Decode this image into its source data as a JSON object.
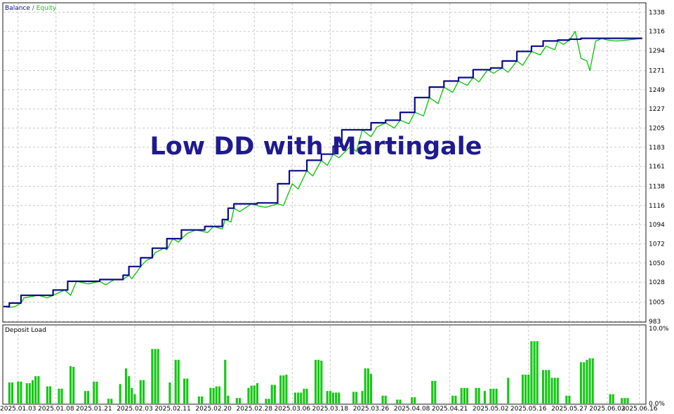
{
  "chart_data": [
    {
      "type": "line",
      "title": "Low DD with Martingale",
      "legend": {
        "items": [
          "Balance",
          "Equity"
        ],
        "separator": " / ",
        "placement": "top-left"
      },
      "colors": {
        "balance": "#0a0a8c",
        "equity": "#17c417",
        "grid": "#c8c8c8"
      },
      "grid": true,
      "ylim": [
        983,
        1348
      ],
      "y_ticks": [
        983,
        1005,
        1028,
        1050,
        1072,
        1094,
        1116,
        1138,
        1161,
        1183,
        1205,
        1227,
        1249,
        1271,
        1294,
        1316,
        1338
      ],
      "xlim": [
        0,
        220
      ],
      "x_ticks": [
        {
          "label": "2025.01.03",
          "x": 5
        },
        {
          "label": "2025.01.08",
          "x": 18
        },
        {
          "label": "2025.01.21",
          "x": 31
        },
        {
          "label": "2025.02.03",
          "x": 45
        },
        {
          "label": "2025.02.11",
          "x": 58
        },
        {
          "label": "2025.02.20",
          "x": 72
        },
        {
          "label": "2025.02.28",
          "x": 86
        },
        {
          "label": "2025.03.06",
          "x": 99
        },
        {
          "label": "2025.03.18",
          "x": 112
        },
        {
          "label": "2025.03.26",
          "x": 126
        },
        {
          "label": "2025.04.08",
          "x": 140
        },
        {
          "label": "2025.04.21",
          "x": 153
        },
        {
          "label": "2025.05.02",
          "x": 167
        },
        {
          "label": "2025.05.16",
          "x": 180
        },
        {
          "label": "2025.05.27",
          "x": 194
        },
        {
          "label": "2025.06.03",
          "x": 207
        },
        {
          "label": "2025.06.16",
          "x": 218
        }
      ],
      "series": [
        {
          "name": "Balance",
          "x": [
            0,
            2,
            2,
            6,
            6,
            17,
            17,
            22,
            22,
            33,
            33,
            41,
            41,
            43,
            43,
            47,
            47,
            51,
            51,
            56,
            56,
            61,
            61,
            69,
            69,
            75,
            75,
            77,
            77,
            79,
            79,
            87,
            87,
            94,
            94,
            98,
            98,
            104,
            104,
            109,
            109,
            113,
            113,
            116,
            116,
            126,
            126,
            131,
            131,
            136,
            136,
            141,
            141,
            146,
            146,
            151,
            151,
            156,
            156,
            161,
            161,
            167,
            167,
            171,
            171,
            176,
            176,
            181,
            181,
            185,
            185,
            190,
            190,
            194,
            194,
            198,
            198,
            219
          ],
          "y": [
            1000,
            1000,
            1004,
            1004,
            1013,
            1013,
            1019,
            1019,
            1029,
            1029,
            1031,
            1031,
            1036,
            1036,
            1046,
            1046,
            1056,
            1056,
            1067,
            1067,
            1078,
            1078,
            1088,
            1088,
            1092,
            1092,
            1100,
            1100,
            1113,
            1113,
            1118,
            1118,
            1119,
            1119,
            1141,
            1141,
            1156,
            1156,
            1168,
            1168,
            1175,
            1175,
            1184,
            1184,
            1203,
            1203,
            1211,
            1211,
            1214,
            1214,
            1223,
            1223,
            1240,
            1240,
            1252,
            1252,
            1259,
            1259,
            1263,
            1263,
            1272,
            1272,
            1274,
            1274,
            1282,
            1282,
            1293,
            1293,
            1299,
            1299,
            1305,
            1305,
            1306,
            1306,
            1307,
            1307,
            1308,
            1308
          ]
        },
        {
          "name": "Equity",
          "x": [
            0,
            2,
            4,
            6,
            7,
            12,
            15,
            17,
            19,
            21,
            23,
            25,
            29,
            33,
            35,
            38,
            41,
            43,
            44,
            46,
            47,
            49,
            51,
            52,
            55,
            56,
            58,
            60,
            61,
            63,
            66,
            70,
            72,
            75,
            76,
            78,
            79,
            81,
            85,
            88,
            90,
            94,
            96,
            99,
            101,
            104,
            106,
            109,
            111,
            113,
            115,
            119,
            121,
            123,
            126,
            128,
            131,
            134,
            136,
            139,
            141,
            144,
            146,
            149,
            151,
            154,
            156,
            159,
            161,
            163,
            166,
            168,
            171,
            173,
            176,
            178,
            181,
            184,
            186,
            189,
            190,
            192,
            194,
            196,
            198,
            200,
            201,
            203,
            204,
            205,
            207,
            210,
            214,
            219
          ],
          "y": [
            1000,
            999,
            1000,
            1004,
            1010,
            1013,
            1010,
            1013,
            1016,
            1019,
            1013,
            1029,
            1026,
            1029,
            1025,
            1031,
            1031,
            1036,
            1032,
            1041,
            1046,
            1053,
            1056,
            1062,
            1067,
            1065,
            1078,
            1074,
            1078,
            1084,
            1088,
            1085,
            1092,
            1089,
            1100,
            1097,
            1113,
            1109,
            1118,
            1115,
            1114,
            1118,
            1116,
            1141,
            1135,
            1156,
            1150,
            1168,
            1162,
            1175,
            1171,
            1184,
            1178,
            1203,
            1195,
            1206,
            1211,
            1205,
            1214,
            1210,
            1223,
            1219,
            1240,
            1233,
            1252,
            1246,
            1259,
            1254,
            1263,
            1258,
            1272,
            1268,
            1274,
            1269,
            1282,
            1277,
            1293,
            1289,
            1299,
            1295,
            1305,
            1301,
            1306,
            1316,
            1285,
            1282,
            1271,
            1305,
            1306,
            1308,
            1306,
            1305,
            1306,
            1308
          ]
        }
      ]
    },
    {
      "type": "bar",
      "title": "Deposit Load",
      "color": "#14c814",
      "ylim": [
        0,
        10
      ],
      "y_tick_labels": [
        "10.0%",
        "0.0%"
      ],
      "bars": [
        {
          "x": 2,
          "v": 2.7
        },
        {
          "x": 3,
          "v": 2.7
        },
        {
          "x": 5,
          "v": 2.8
        },
        {
          "x": 6,
          "v": 2.8
        },
        {
          "x": 8,
          "v": 2.6
        },
        {
          "x": 9,
          "v": 2.6
        },
        {
          "x": 10,
          "v": 3.0
        },
        {
          "x": 11,
          "v": 3.5
        },
        {
          "x": 12,
          "v": 3.5
        },
        {
          "x": 15,
          "v": 2.2
        },
        {
          "x": 16,
          "v": 2.2
        },
        {
          "x": 19,
          "v": 1.9
        },
        {
          "x": 20,
          "v": 1.9
        },
        {
          "x": 23,
          "v": 4.8
        },
        {
          "x": 24,
          "v": 4.7
        },
        {
          "x": 28,
          "v": 1.6
        },
        {
          "x": 29,
          "v": 1.6
        },
        {
          "x": 31,
          "v": 2.8
        },
        {
          "x": 32,
          "v": 2.8
        },
        {
          "x": 36,
          "v": 0.6
        },
        {
          "x": 37,
          "v": 0.6
        },
        {
          "x": 40,
          "v": 2.5
        },
        {
          "x": 42,
          "v": 4.5
        },
        {
          "x": 43,
          "v": 3.5
        },
        {
          "x": 44,
          "v": 2.0
        },
        {
          "x": 45,
          "v": 1.2
        },
        {
          "x": 47,
          "v": 3.0
        },
        {
          "x": 48,
          "v": 3.0
        },
        {
          "x": 51,
          "v": 7.0
        },
        {
          "x": 52,
          "v": 7.0
        },
        {
          "x": 53,
          "v": 7.0
        },
        {
          "x": 57,
          "v": 2.7
        },
        {
          "x": 59,
          "v": 5.6
        },
        {
          "x": 60,
          "v": 5.6
        },
        {
          "x": 62,
          "v": 3.2
        },
        {
          "x": 63,
          "v": 3.2
        },
        {
          "x": 67,
          "v": 0.9
        },
        {
          "x": 68,
          "v": 0.9
        },
        {
          "x": 71,
          "v": 2.0
        },
        {
          "x": 72,
          "v": 2.0
        },
        {
          "x": 73,
          "v": 2.2
        },
        {
          "x": 74,
          "v": 2.2
        },
        {
          "x": 76,
          "v": 5.6
        },
        {
          "x": 77,
          "v": 1.0
        },
        {
          "x": 80,
          "v": 0.7
        },
        {
          "x": 81,
          "v": 0.7
        },
        {
          "x": 84,
          "v": 2.0
        },
        {
          "x": 85,
          "v": 2.3
        },
        {
          "x": 86,
          "v": 2.3
        },
        {
          "x": 87,
          "v": 2.6
        },
        {
          "x": 90,
          "v": 0.6
        },
        {
          "x": 91,
          "v": 0.6
        },
        {
          "x": 92,
          "v": 2.4
        },
        {
          "x": 93,
          "v": 2.4
        },
        {
          "x": 95,
          "v": 3.6
        },
        {
          "x": 96,
          "v": 3.6
        },
        {
          "x": 97,
          "v": 3.7
        },
        {
          "x": 100,
          "v": 1.4
        },
        {
          "x": 101,
          "v": 1.4
        },
        {
          "x": 102,
          "v": 1.4
        },
        {
          "x": 103,
          "v": 1.9
        },
        {
          "x": 104,
          "v": 1.9
        },
        {
          "x": 107,
          "v": 5.6
        },
        {
          "x": 108,
          "v": 5.6
        },
        {
          "x": 109,
          "v": 5.5
        },
        {
          "x": 111,
          "v": 1.6
        },
        {
          "x": 112,
          "v": 1.6
        },
        {
          "x": 113,
          "v": 1.4
        },
        {
          "x": 114,
          "v": 1.4
        },
        {
          "x": 115,
          "v": 1.4
        },
        {
          "x": 120,
          "v": 1.5
        },
        {
          "x": 121,
          "v": 1.5
        },
        {
          "x": 123,
          "v": 1.6
        },
        {
          "x": 124,
          "v": 4.5
        },
        {
          "x": 125,
          "v": 4.5
        },
        {
          "x": 126,
          "v": 3.8
        },
        {
          "x": 130,
          "v": 1.0
        },
        {
          "x": 131,
          "v": 1.0
        },
        {
          "x": 135,
          "v": 0.5
        },
        {
          "x": 136,
          "v": 0.5
        },
        {
          "x": 140,
          "v": 0.8
        },
        {
          "x": 141,
          "v": 0.8
        },
        {
          "x": 147,
          "v": 2.9
        },
        {
          "x": 148,
          "v": 2.9
        },
        {
          "x": 154,
          "v": 1.0
        },
        {
          "x": 155,
          "v": 1.0
        },
        {
          "x": 157,
          "v": 2.0
        },
        {
          "x": 158,
          "v": 2.0
        },
        {
          "x": 159,
          "v": 2.0
        },
        {
          "x": 162,
          "v": 2.0
        },
        {
          "x": 163,
          "v": 2.0
        },
        {
          "x": 165,
          "v": 1.6
        },
        {
          "x": 167,
          "v": 1.9
        },
        {
          "x": 168,
          "v": 1.9
        },
        {
          "x": 169,
          "v": 1.9
        },
        {
          "x": 173,
          "v": 3.3
        },
        {
          "x": 178,
          "v": 3.7
        },
        {
          "x": 179,
          "v": 3.7
        },
        {
          "x": 180,
          "v": 3.7
        },
        {
          "x": 181,
          "v": 8.0
        },
        {
          "x": 182,
          "v": 8.0
        },
        {
          "x": 183,
          "v": 8.0
        },
        {
          "x": 185,
          "v": 4.3
        },
        {
          "x": 186,
          "v": 4.3
        },
        {
          "x": 187,
          "v": 4.3
        },
        {
          "x": 188,
          "v": 3.3
        },
        {
          "x": 189,
          "v": 3.3
        },
        {
          "x": 190,
          "v": 3.3
        },
        {
          "x": 193,
          "v": 1.0
        },
        {
          "x": 194,
          "v": 1.0
        },
        {
          "x": 198,
          "v": 5.3
        },
        {
          "x": 199,
          "v": 5.3
        },
        {
          "x": 200,
          "v": 5.6
        },
        {
          "x": 201,
          "v": 5.8
        },
        {
          "x": 202,
          "v": 5.8
        },
        {
          "x": 208,
          "v": 1.2
        },
        {
          "x": 209,
          "v": 1.2
        },
        {
          "x": 212,
          "v": 0.7
        },
        {
          "x": 213,
          "v": 0.7
        },
        {
          "x": 214,
          "v": 0.7
        }
      ]
    }
  ]
}
